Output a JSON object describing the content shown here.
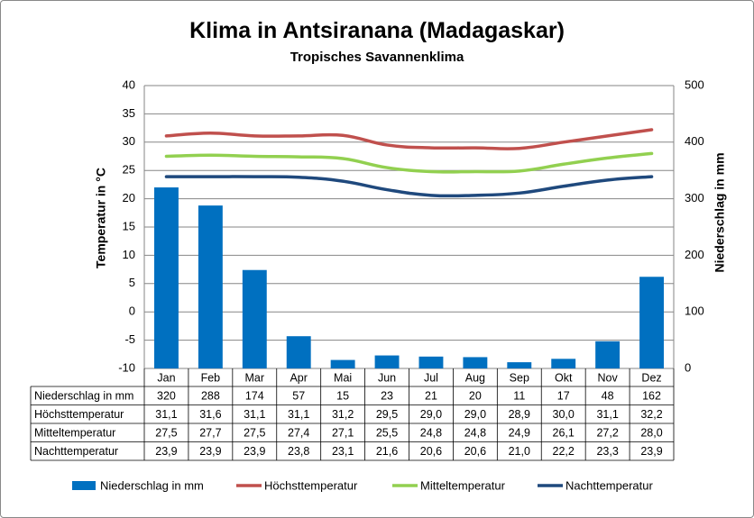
{
  "chart_data": {
    "type": "bar+line",
    "title": "Klima in Antsiranana (Madagaskar)",
    "subtitle": "Tropisches Savannenklima",
    "ylabel_left": "Temperatur in °C",
    "ylabel_right": "Niederschlag in mm",
    "ylim_left": [
      -10,
      40
    ],
    "ylim_right": [
      0,
      500
    ],
    "yticks_left": [
      "40",
      "35",
      "30",
      "25",
      "20",
      "15",
      "10",
      "5",
      "0",
      "-5",
      "-10"
    ],
    "yticks_right": [
      "500",
      "400",
      "300",
      "200",
      "100",
      "0"
    ],
    "grid": true,
    "legend_position": "bottom",
    "categories": [
      "Jan",
      "Feb",
      "Mar",
      "Apr",
      "Mai",
      "Jun",
      "Jul",
      "Aug",
      "Sep",
      "Okt",
      "Nov",
      "Dez"
    ],
    "series": [
      {
        "name": "Niederschlag in mm",
        "type": "bar",
        "axis": "right",
        "color": "#0070C0",
        "values": [
          320,
          288,
          174,
          57,
          15,
          23,
          21,
          20,
          11,
          17,
          48,
          162
        ],
        "labels": [
          "320",
          "288",
          "174",
          "57",
          "15",
          "23",
          "21",
          "20",
          "11",
          "17",
          "48",
          "162"
        ]
      },
      {
        "name": "Höchsttemperatur",
        "type": "line",
        "axis": "left",
        "color": "#C0504D",
        "values": [
          31.1,
          31.6,
          31.1,
          31.1,
          31.2,
          29.5,
          29.0,
          29.0,
          28.9,
          30.0,
          31.1,
          32.2
        ],
        "labels": [
          "31,1",
          "31,6",
          "31,1",
          "31,1",
          "31,2",
          "29,5",
          "29,0",
          "29,0",
          "28,9",
          "30,0",
          "31,1",
          "32,2"
        ]
      },
      {
        "name": "Mitteltemperatur",
        "type": "line",
        "axis": "left",
        "color": "#92D050",
        "values": [
          27.5,
          27.7,
          27.5,
          27.4,
          27.1,
          25.5,
          24.8,
          24.8,
          24.9,
          26.1,
          27.2,
          28.0
        ],
        "labels": [
          "27,5",
          "27,7",
          "27,5",
          "27,4",
          "27,1",
          "25,5",
          "24,8",
          "24,8",
          "24,9",
          "26,1",
          "27,2",
          "28,0"
        ]
      },
      {
        "name": "Nachttemperatur",
        "type": "line",
        "axis": "left",
        "color": "#1F497D",
        "values": [
          23.9,
          23.9,
          23.9,
          23.8,
          23.1,
          21.6,
          20.6,
          20.6,
          21.0,
          22.2,
          23.3,
          23.9
        ],
        "labels": [
          "23,9",
          "23,9",
          "23,9",
          "23,8",
          "23,1",
          "21,6",
          "20,6",
          "20,6",
          "21,0",
          "22,2",
          "23,3",
          "23,9"
        ]
      }
    ]
  }
}
